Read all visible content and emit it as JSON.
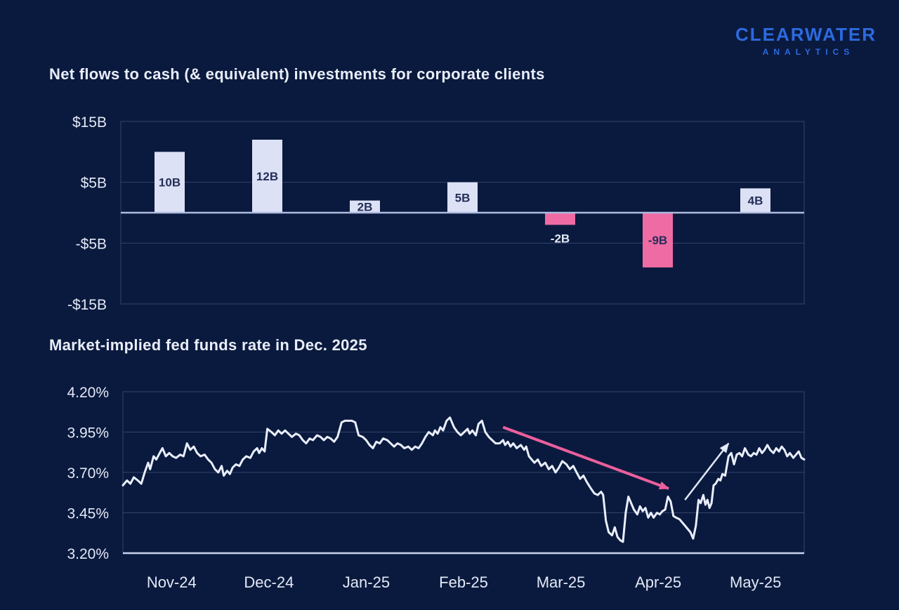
{
  "logo": {
    "line1": "CLEARWATER",
    "line2": "ANALYTICS"
  },
  "colors": {
    "background": "#0A1A3E",
    "accent_blue": "#2C6ADF",
    "bar_positive": "#DCE1F6",
    "bar_negative": "#EF6BA4",
    "bar_label_dark": "#232F56",
    "tick_text": "#E3E8F6",
    "grid": "#33416B",
    "zero_line": "#AEBBDF",
    "baseline": "#C9D3EE",
    "line": "#E9EEFB",
    "arrow_pink": "#EC5F9D",
    "arrow_white": "#E2E9F8"
  },
  "chart_data": [
    {
      "type": "bar",
      "title": "Net flows to cash (& equivalent) investments for corporate clients",
      "categories": [
        "Nov-24",
        "Dec-24",
        "Jan-25",
        "Feb-25",
        "Mar-25",
        "Apr-25",
        "May-25"
      ],
      "values": [
        10,
        12,
        2,
        5,
        -2,
        -9,
        4
      ],
      "value_labels": [
        "10B",
        "12B",
        "2B",
        "5B",
        "-2B",
        "-9B",
        "4B"
      ],
      "unit": "USD billions",
      "ytick_labels": [
        "$15B",
        "$5B",
        "-$5B",
        "-$15B"
      ],
      "ytick_values": [
        15,
        5,
        -5,
        -15
      ],
      "ylim": [
        -15,
        15
      ],
      "x_axis_labels_hidden": true,
      "grid": true,
      "legend": "none"
    },
    {
      "type": "line",
      "title": "Market-implied fed funds rate in Dec. 2025",
      "xtick_labels": [
        "Nov-24",
        "Dec-24",
        "Jan-25",
        "Feb-25",
        "Mar-25",
        "Apr-25",
        "May-25"
      ],
      "ytick_labels": [
        "4.20%",
        "3.95%",
        "3.70%",
        "3.45%",
        "3.20%"
      ],
      "ytick_values": [
        4.2,
        3.95,
        3.7,
        3.45,
        3.2
      ],
      "ylim": [
        3.2,
        4.2
      ],
      "xlim_note": "x stored as fraction 0-1 of axis from start of Nov-24 to end of May-25",
      "grid": true,
      "legend": "none",
      "points": [
        [
          0,
          3.62
        ],
        [
          0.006,
          3.65
        ],
        [
          0.011,
          3.63
        ],
        [
          0.016,
          3.67
        ],
        [
          0.022,
          3.65
        ],
        [
          0.027,
          3.63
        ],
        [
          0.032,
          3.7
        ],
        [
          0.037,
          3.76
        ],
        [
          0.04,
          3.72
        ],
        [
          0.045,
          3.8
        ],
        [
          0.049,
          3.78
        ],
        [
          0.054,
          3.82
        ],
        [
          0.058,
          3.85
        ],
        [
          0.063,
          3.8
        ],
        [
          0.068,
          3.82
        ],
        [
          0.073,
          3.8
        ],
        [
          0.078,
          3.79
        ],
        [
          0.084,
          3.81
        ],
        [
          0.089,
          3.8
        ],
        [
          0.094,
          3.88
        ],
        [
          0.099,
          3.84
        ],
        [
          0.104,
          3.86
        ],
        [
          0.109,
          3.82
        ],
        [
          0.114,
          3.8
        ],
        [
          0.12,
          3.81
        ],
        [
          0.125,
          3.78
        ],
        [
          0.13,
          3.76
        ],
        [
          0.135,
          3.72
        ],
        [
          0.14,
          3.7
        ],
        [
          0.145,
          3.74
        ],
        [
          0.148,
          3.68
        ],
        [
          0.153,
          3.71
        ],
        [
          0.157,
          3.69
        ],
        [
          0.161,
          3.73
        ],
        [
          0.166,
          3.75
        ],
        [
          0.171,
          3.74
        ],
        [
          0.176,
          3.78
        ],
        [
          0.181,
          3.8
        ],
        [
          0.187,
          3.79
        ],
        [
          0.192,
          3.83
        ],
        [
          0.197,
          3.85
        ],
        [
          0.2,
          3.82
        ],
        [
          0.204,
          3.85
        ],
        [
          0.208,
          3.83
        ],
        [
          0.212,
          3.97
        ],
        [
          0.218,
          3.95
        ],
        [
          0.223,
          3.93
        ],
        [
          0.228,
          3.96
        ],
        [
          0.233,
          3.94
        ],
        [
          0.238,
          3.96
        ],
        [
          0.243,
          3.94
        ],
        [
          0.248,
          3.92
        ],
        [
          0.254,
          3.94
        ],
        [
          0.259,
          3.93
        ],
        [
          0.264,
          3.9
        ],
        [
          0.269,
          3.88
        ],
        [
          0.274,
          3.91
        ],
        [
          0.279,
          3.9
        ],
        [
          0.285,
          3.93
        ],
        [
          0.29,
          3.92
        ],
        [
          0.295,
          3.9
        ],
        [
          0.3,
          3.92
        ],
        [
          0.305,
          3.91
        ],
        [
          0.31,
          3.89
        ],
        [
          0.315,
          3.92
        ],
        [
          0.321,
          4.01
        ],
        [
          0.326,
          4.02
        ],
        [
          0.336,
          4.02
        ],
        [
          0.341,
          4.01
        ],
        [
          0.346,
          3.93
        ],
        [
          0.352,
          3.92
        ],
        [
          0.357,
          3.9
        ],
        [
          0.362,
          3.87
        ],
        [
          0.367,
          3.85
        ],
        [
          0.372,
          3.89
        ],
        [
          0.377,
          3.88
        ],
        [
          0.382,
          3.91
        ],
        [
          0.388,
          3.9
        ],
        [
          0.393,
          3.88
        ],
        [
          0.398,
          3.86
        ],
        [
          0.403,
          3.88
        ],
        [
          0.408,
          3.87
        ],
        [
          0.413,
          3.85
        ],
        [
          0.419,
          3.86
        ],
        [
          0.424,
          3.84
        ],
        [
          0.429,
          3.86
        ],
        [
          0.434,
          3.85
        ],
        [
          0.439,
          3.88
        ],
        [
          0.444,
          3.92
        ],
        [
          0.449,
          3.95
        ],
        [
          0.455,
          3.93
        ],
        [
          0.458,
          3.96
        ],
        [
          0.462,
          3.94
        ],
        [
          0.466,
          3.98
        ],
        [
          0.47,
          3.96
        ],
        [
          0.475,
          4.02
        ],
        [
          0.48,
          4.04
        ],
        [
          0.486,
          3.98
        ],
        [
          0.491,
          3.95
        ],
        [
          0.496,
          3.93
        ],
        [
          0.501,
          3.95
        ],
        [
          0.506,
          3.97
        ],
        [
          0.509,
          3.94
        ],
        [
          0.513,
          3.96
        ],
        [
          0.518,
          3.93
        ],
        [
          0.522,
          4.0
        ],
        [
          0.527,
          4.02
        ],
        [
          0.532,
          3.95
        ],
        [
          0.537,
          3.92
        ],
        [
          0.542,
          3.9
        ],
        [
          0.547,
          3.88
        ],
        [
          0.553,
          3.88
        ],
        [
          0.558,
          3.9
        ],
        [
          0.561,
          3.87
        ],
        [
          0.565,
          3.89
        ],
        [
          0.569,
          3.86
        ],
        [
          0.573,
          3.88
        ],
        [
          0.578,
          3.85
        ],
        [
          0.584,
          3.87
        ],
        [
          0.589,
          3.84
        ],
        [
          0.592,
          3.86
        ],
        [
          0.596,
          3.8
        ],
        [
          0.6,
          3.78
        ],
        [
          0.604,
          3.76
        ],
        [
          0.609,
          3.78
        ],
        [
          0.614,
          3.74
        ],
        [
          0.62,
          3.76
        ],
        [
          0.625,
          3.72
        ],
        [
          0.63,
          3.74
        ],
        [
          0.635,
          3.7
        ],
        [
          0.64,
          3.73
        ],
        [
          0.645,
          3.77
        ],
        [
          0.651,
          3.75
        ],
        [
          0.656,
          3.72
        ],
        [
          0.661,
          3.74
        ],
        [
          0.666,
          3.7
        ],
        [
          0.671,
          3.66
        ],
        [
          0.676,
          3.68
        ],
        [
          0.681,
          3.64
        ],
        [
          0.687,
          3.6
        ],
        [
          0.692,
          3.57
        ],
        [
          0.697,
          3.56
        ],
        [
          0.702,
          3.58
        ],
        [
          0.705,
          3.56
        ],
        [
          0.709,
          3.4
        ],
        [
          0.713,
          3.33
        ],
        [
          0.718,
          3.31
        ],
        [
          0.722,
          3.36
        ],
        [
          0.726,
          3.3
        ],
        [
          0.73,
          3.28
        ],
        [
          0.734,
          3.27
        ],
        [
          0.738,
          3.45
        ],
        [
          0.742,
          3.55
        ],
        [
          0.746,
          3.51
        ],
        [
          0.75,
          3.47
        ],
        [
          0.755,
          3.44
        ],
        [
          0.759,
          3.49
        ],
        [
          0.763,
          3.46
        ],
        [
          0.767,
          3.48
        ],
        [
          0.771,
          3.42
        ],
        [
          0.775,
          3.45
        ],
        [
          0.779,
          3.42
        ],
        [
          0.784,
          3.45
        ],
        [
          0.788,
          3.44
        ],
        [
          0.792,
          3.46
        ],
        [
          0.796,
          3.47
        ],
        [
          0.8,
          3.55
        ],
        [
          0.804,
          3.52
        ],
        [
          0.808,
          3.43
        ],
        [
          0.812,
          3.42
        ],
        [
          0.817,
          3.41
        ],
        [
          0.821,
          3.39
        ],
        [
          0.825,
          3.37
        ],
        [
          0.829,
          3.35
        ],
        [
          0.833,
          3.33
        ],
        [
          0.837,
          3.29
        ],
        [
          0.841,
          3.37
        ],
        [
          0.845,
          3.53
        ],
        [
          0.848,
          3.51
        ],
        [
          0.852,
          3.56
        ],
        [
          0.855,
          3.5
        ],
        [
          0.858,
          3.53
        ],
        [
          0.861,
          3.48
        ],
        [
          0.864,
          3.51
        ],
        [
          0.867,
          3.62
        ],
        [
          0.87,
          3.63
        ],
        [
          0.874,
          3.66
        ],
        [
          0.877,
          3.65
        ],
        [
          0.88,
          3.69
        ],
        [
          0.884,
          3.68
        ],
        [
          0.889,
          3.8
        ],
        [
          0.893,
          3.82
        ],
        [
          0.897,
          3.75
        ],
        [
          0.901,
          3.81
        ],
        [
          0.905,
          3.82
        ],
        [
          0.909,
          3.8
        ],
        [
          0.913,
          3.85
        ],
        [
          0.918,
          3.81
        ],
        [
          0.922,
          3.8
        ],
        [
          0.926,
          3.82
        ],
        [
          0.93,
          3.81
        ],
        [
          0.934,
          3.85
        ],
        [
          0.938,
          3.82
        ],
        [
          0.942,
          3.84
        ],
        [
          0.946,
          3.87
        ],
        [
          0.95,
          3.84
        ],
        [
          0.955,
          3.82
        ],
        [
          0.959,
          3.85
        ],
        [
          0.963,
          3.83
        ],
        [
          0.967,
          3.86
        ],
        [
          0.971,
          3.84
        ],
        [
          0.975,
          3.8
        ],
        [
          0.979,
          3.82
        ],
        [
          0.984,
          3.79
        ],
        [
          0.988,
          3.81
        ],
        [
          0.992,
          3.83
        ],
        [
          0.996,
          3.79
        ],
        [
          1,
          3.78
        ]
      ],
      "annotations": [
        {
          "name": "decline-arrow",
          "style": "pink-arrow",
          "from": [
            0.558,
            3.98
          ],
          "to": [
            0.801,
            3.6
          ],
          "stroke_width": 4
        },
        {
          "name": "recovery-arrow",
          "style": "white-arrow",
          "from": [
            0.825,
            3.53
          ],
          "to": [
            0.889,
            3.88
          ],
          "stroke_width": 2.5
        }
      ]
    }
  ]
}
